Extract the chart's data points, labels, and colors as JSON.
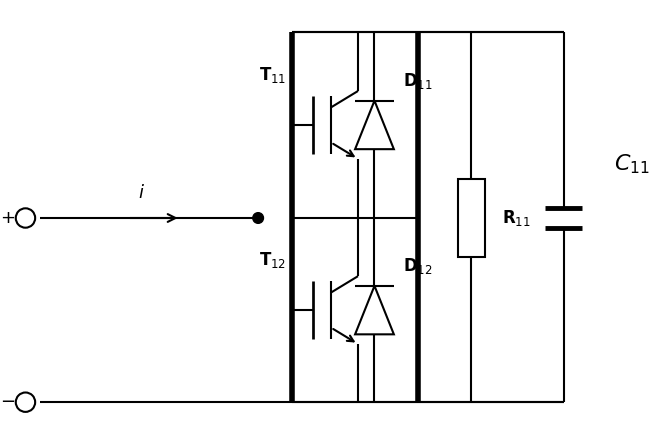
{
  "bg_color": "#ffffff",
  "line_color": "#000000",
  "lw": 1.5,
  "lw_thick": 4.0,
  "fig_width": 6.53,
  "fig_height": 4.36,
  "labels": {
    "T11": "T$_{11}$",
    "T12": "T$_{12}$",
    "D11": "D$_{11}$",
    "D12": "D$_{12}$",
    "R11": "R$_{11}$",
    "C11": "$C_{11}$",
    "i": "$i$",
    "plus": "+",
    "minus": "−"
  }
}
